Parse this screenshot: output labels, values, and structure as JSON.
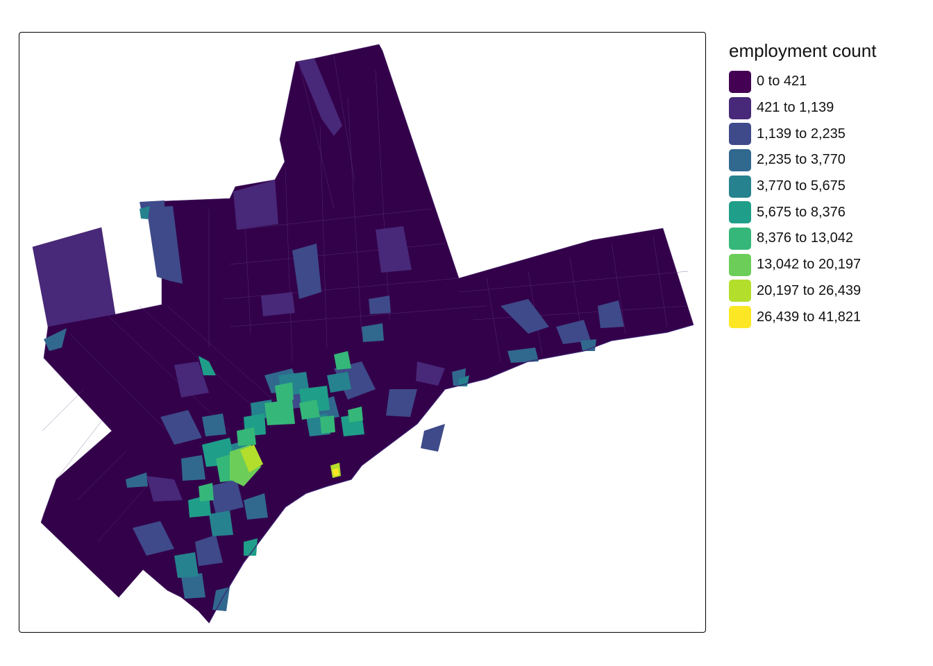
{
  "legend": {
    "title": "employment count",
    "items": [
      {
        "label": "0 to 421",
        "color": "#440154"
      },
      {
        "label": "421 to 1,139",
        "color": "#482878"
      },
      {
        "label": "1,139 to 2,235",
        "color": "#3E4A89"
      },
      {
        "label": "2,235 to 3,770",
        "color": "#31688E"
      },
      {
        "label": "3,770 to 5,675",
        "color": "#26828E"
      },
      {
        "label": "5,675 to 8,376",
        "color": "#1F9E89"
      },
      {
        "label": "8,376 to 13,042",
        "color": "#35B779"
      },
      {
        "label": "13,042 to 20,197",
        "color": "#6DCD59"
      },
      {
        "label": "20,197 to 26,439",
        "color": "#B4DE2C"
      },
      {
        "label": "26,439 to 41,821",
        "color": "#FDE725"
      }
    ]
  },
  "map": {
    "base_color": "#33004A",
    "boundary_color": "#6a4a86"
  }
}
